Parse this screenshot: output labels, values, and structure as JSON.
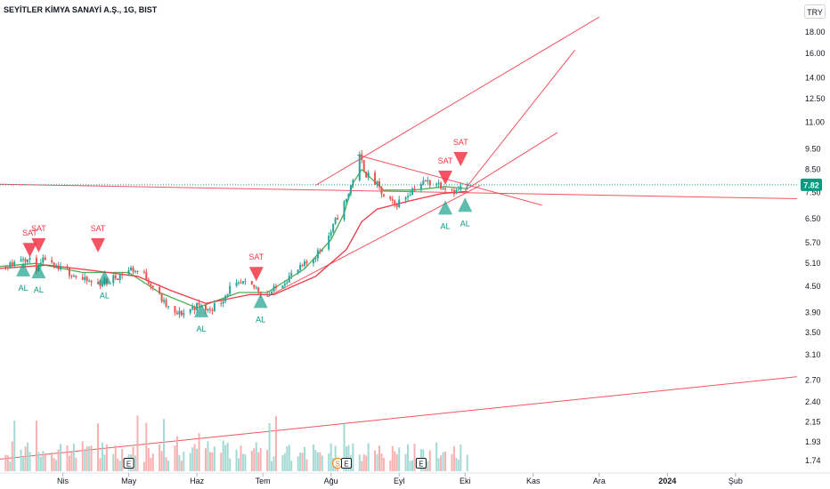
{
  "header": {
    "title": "SEYİTLER KİMYA SANAYİ A.Ş., 1G, BIST",
    "currency": "TRY"
  },
  "colors": {
    "up": "#26a69a",
    "down": "#ef5350",
    "trendline": "#f23645",
    "ma_fast": "#4caf50",
    "ma_slow": "#f23645",
    "last_price_bg": "#089981"
  },
  "chart_data": {
    "type": "candlestick",
    "y_scale": "log",
    "y_range": [
      1.7,
      20.0
    ],
    "y_ticks": [
      "18.00",
      "16.00",
      "14.00",
      "12.50",
      "11.00",
      "9.50",
      "8.50",
      "7.50",
      "6.50",
      "5.70",
      "5.10",
      "4.50",
      "3.90",
      "3.50",
      "3.10",
      "2.70",
      "2.40",
      "2.15",
      "1.93",
      "1.74"
    ],
    "x_range": [
      "2023-03-01",
      "2024-02-29"
    ],
    "x_ticks": [
      {
        "label": "Nis",
        "date": "2023-04-01"
      },
      {
        "label": "May",
        "date": "2023-05-01"
      },
      {
        "label": "Haz",
        "date": "2023-06-01"
      },
      {
        "label": "Tem",
        "date": "2023-07-01"
      },
      {
        "label": "Ağu",
        "date": "2023-08-01"
      },
      {
        "label": "Eyl",
        "date": "2023-09-01"
      },
      {
        "label": "Eki",
        "date": "2023-10-01"
      },
      {
        "label": "Kas",
        "date": "2023-11-01"
      },
      {
        "label": "Ara",
        "date": "2023-12-01"
      },
      {
        "label": "2024",
        "date": "2024-01-01"
      },
      {
        "label": "Şub",
        "date": "2024-02-01"
      }
    ],
    "last_price": "7.82",
    "close_points": [
      [
        "2023-03-01",
        5.0
      ],
      [
        "2023-03-08",
        5.05
      ],
      [
        "2023-03-14",
        5.3
      ],
      [
        "2023-03-17",
        5.15
      ],
      [
        "2023-03-21",
        4.95
      ],
      [
        "2023-03-24",
        5.25
      ],
      [
        "2023-03-28",
        4.95
      ],
      [
        "2023-04-03",
        4.9
      ],
      [
        "2023-04-10",
        4.65
      ],
      [
        "2023-04-17",
        4.55
      ],
      [
        "2023-04-24",
        4.7
      ],
      [
        "2023-05-02",
        4.95
      ],
      [
        "2023-05-08",
        4.8
      ],
      [
        "2023-05-12",
        4.5
      ],
      [
        "2023-05-17",
        4.1
      ],
      [
        "2023-05-22",
        3.85
      ],
      [
        "2023-05-26",
        3.9
      ],
      [
        "2023-06-01",
        4.05
      ],
      [
        "2023-06-06",
        3.95
      ],
      [
        "2023-06-12",
        4.15
      ],
      [
        "2023-06-16",
        4.45
      ],
      [
        "2023-06-22",
        4.55
      ],
      [
        "2023-06-28",
        4.45
      ],
      [
        "2023-07-03",
        4.3
      ],
      [
        "2023-07-07",
        4.45
      ],
      [
        "2023-07-12",
        4.7
      ],
      [
        "2023-07-18",
        4.95
      ],
      [
        "2023-07-24",
        5.25
      ],
      [
        "2023-07-28",
        5.6
      ],
      [
        "2023-08-01",
        6.05
      ],
      [
        "2023-08-04",
        6.6
      ],
      [
        "2023-08-08",
        7.2
      ],
      [
        "2023-08-11",
        8.1
      ],
      [
        "2023-08-14",
        9.1
      ],
      [
        "2023-08-17",
        8.3
      ],
      [
        "2023-08-22",
        7.8
      ],
      [
        "2023-08-25",
        7.3
      ],
      [
        "2023-08-30",
        7.0
      ],
      [
        "2023-09-04",
        7.35
      ],
      [
        "2023-09-08",
        7.75
      ],
      [
        "2023-09-13",
        7.95
      ],
      [
        "2023-09-18",
        7.9
      ],
      [
        "2023-09-22",
        7.75
      ],
      [
        "2023-09-27",
        7.55
      ],
      [
        "2023-09-29",
        7.7
      ],
      [
        "2023-10-02",
        7.82
      ]
    ],
    "series": [
      {
        "name": "",
        "type": "moving_average",
        "points": [
          [
            "2023-03-01",
            5.0
          ],
          [
            "2023-03-20",
            5.1
          ],
          [
            "2023-04-10",
            4.85
          ],
          [
            "2023-05-01",
            4.85
          ],
          [
            "2023-05-15",
            4.35
          ],
          [
            "2023-06-01",
            4.0
          ],
          [
            "2023-06-20",
            4.35
          ],
          [
            "2023-07-03",
            4.35
          ],
          [
            "2023-07-20",
            4.95
          ],
          [
            "2023-08-01",
            5.8
          ],
          [
            "2023-08-07",
            6.7
          ],
          [
            "2023-08-11",
            7.9
          ],
          [
            "2023-08-15",
            8.5
          ],
          [
            "2023-08-25",
            7.6
          ],
          [
            "2023-09-08",
            7.6
          ],
          [
            "2023-09-22",
            7.75
          ],
          [
            "2023-10-02",
            7.65
          ]
        ]
      },
      {
        "name": "",
        "type": "moving_average",
        "points": [
          [
            "2023-03-01",
            4.95
          ],
          [
            "2023-03-25",
            5.05
          ],
          [
            "2023-04-15",
            4.9
          ],
          [
            "2023-05-05",
            4.75
          ],
          [
            "2023-05-20",
            4.4
          ],
          [
            "2023-06-05",
            4.1
          ],
          [
            "2023-06-25",
            4.3
          ],
          [
            "2023-07-06",
            4.3
          ],
          [
            "2023-07-25",
            4.75
          ],
          [
            "2023-08-08",
            5.5
          ],
          [
            "2023-08-15",
            6.4
          ],
          [
            "2023-08-22",
            6.85
          ],
          [
            "2023-09-05",
            7.15
          ],
          [
            "2023-09-20",
            7.45
          ],
          [
            "2023-10-02",
            7.55
          ]
        ]
      }
    ],
    "signals": [
      {
        "type": "SAT",
        "date": "2023-03-17",
        "price": 5.7
      },
      {
        "type": "SAT",
        "date": "2023-03-21",
        "price": 5.85
      },
      {
        "type": "SAT",
        "date": "2023-04-17",
        "price": 5.85
      },
      {
        "type": "SAT",
        "date": "2023-06-28",
        "price": 5.0
      },
      {
        "type": "SAT",
        "date": "2023-09-22",
        "price": 8.45
      },
      {
        "type": "SAT",
        "date": "2023-09-29",
        "price": 9.35
      },
      {
        "type": "AL",
        "date": "2023-03-14",
        "price": 4.75
      },
      {
        "type": "AL",
        "date": "2023-03-21",
        "price": 4.7
      },
      {
        "type": "AL",
        "date": "2023-04-20",
        "price": 4.55
      },
      {
        "type": "AL",
        "date": "2023-06-03",
        "price": 3.8
      },
      {
        "type": "AL",
        "date": "2023-06-30",
        "price": 4.0
      },
      {
        "type": "AL",
        "date": "2023-09-22",
        "price": 6.65
      },
      {
        "type": "AL",
        "date": "2023-10-01",
        "price": 6.75
      }
    ],
    "trendlines": [
      {
        "from": [
          "2023-03-01",
          7.85
        ],
        "to": [
          "2024-02-29",
          7.25
        ]
      },
      {
        "from": [
          "2023-07-03",
          4.25
        ],
        "to": [
          "2023-10-08",
          7.8
        ]
      },
      {
        "from": [
          "2023-08-13",
          9.2
        ],
        "to": [
          "2023-11-05",
          7.0
        ]
      },
      {
        "from": [
          "2023-07-25",
          7.8
        ],
        "to": [
          "2023-12-01",
          19.5
        ]
      },
      {
        "from": [
          "2023-10-01",
          7.65
        ],
        "to": [
          "2023-11-20",
          16.3
        ]
      },
      {
        "from": [
          "2023-10-01",
          7.6
        ],
        "to": [
          "2023-11-12",
          10.4
        ]
      },
      {
        "from": [
          "2023-03-01",
          1.75
        ],
        "to": [
          "2024-02-29",
          2.75
        ]
      }
    ],
    "event_markers": [
      {
        "label": "E",
        "date": "2023-05-01"
      },
      {
        "label": "S",
        "date": "2023-08-04"
      },
      {
        "label": "E",
        "date": "2023-08-08"
      },
      {
        "label": "E",
        "date": "2023-09-11"
      }
    ]
  }
}
